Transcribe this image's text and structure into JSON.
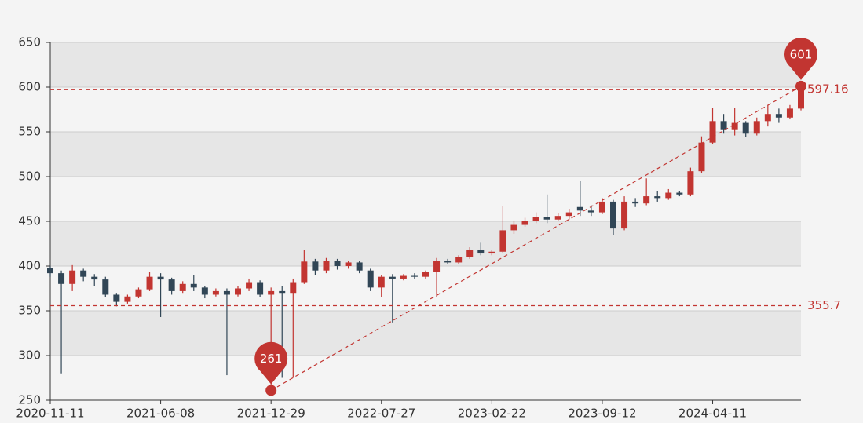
{
  "chart_data": {
    "type": "candlestick",
    "categories": [
      "2020-11-11",
      null,
      null,
      null,
      null,
      null,
      null,
      null,
      null,
      null,
      "2021-06-08",
      null,
      null,
      null,
      null,
      null,
      null,
      null,
      null,
      null,
      "2021-12-29",
      null,
      null,
      null,
      null,
      null,
      null,
      null,
      null,
      null,
      "2022-07-27",
      null,
      null,
      null,
      null,
      null,
      null,
      null,
      null,
      null,
      "2023-02-22",
      null,
      null,
      null,
      null,
      null,
      null,
      null,
      null,
      null,
      "2023-09-12",
      null,
      null,
      null,
      null,
      null,
      null,
      null,
      null,
      null,
      "2024-04-11",
      null,
      null,
      null,
      null,
      null,
      null,
      null,
      null
    ],
    "ohlc_order": [
      "open",
      "close",
      "low",
      "high"
    ],
    "values": [
      [
        398,
        392,
        388,
        400
      ],
      [
        392,
        380,
        280,
        395
      ],
      [
        380,
        395,
        372,
        401
      ],
      [
        395,
        388,
        383,
        397
      ],
      [
        388,
        385,
        378,
        391
      ],
      [
        385,
        368,
        365,
        388
      ],
      [
        368,
        360,
        355,
        370
      ],
      [
        360,
        366,
        358,
        368
      ],
      [
        366,
        374,
        364,
        376
      ],
      [
        374,
        388,
        372,
        393
      ],
      [
        388,
        385,
        343,
        392
      ],
      [
        385,
        372,
        368,
        387
      ],
      [
        372,
        380,
        370,
        383
      ],
      [
        380,
        376,
        372,
        390
      ],
      [
        376,
        368,
        364,
        378
      ],
      [
        368,
        372,
        366,
        375
      ],
      [
        372,
        368,
        278,
        375
      ],
      [
        368,
        375,
        366,
        378
      ],
      [
        375,
        382,
        372,
        386
      ],
      [
        382,
        368,
        365,
        384
      ],
      [
        368,
        372,
        261,
        376
      ],
      [
        372,
        370,
        275,
        378
      ],
      [
        370,
        382,
        275,
        386
      ],
      [
        382,
        405,
        380,
        418
      ],
      [
        405,
        395,
        390,
        408
      ],
      [
        395,
        406,
        392,
        409
      ],
      [
        406,
        400,
        396,
        408
      ],
      [
        400,
        404,
        397,
        406
      ],
      [
        404,
        395,
        392,
        406
      ],
      [
        395,
        376,
        372,
        397
      ],
      [
        376,
        388,
        365,
        390
      ],
      [
        388,
        386,
        337,
        391
      ],
      [
        386,
        389,
        384,
        391
      ],
      [
        389,
        388,
        386,
        392
      ],
      [
        388,
        393,
        386,
        395
      ],
      [
        393,
        406,
        365,
        409
      ],
      [
        406,
        404,
        402,
        408
      ],
      [
        404,
        410,
        402,
        412
      ],
      [
        410,
        418,
        408,
        421
      ],
      [
        418,
        414,
        412,
        426
      ],
      [
        414,
        416,
        412,
        418
      ],
      [
        416,
        440,
        414,
        467
      ],
      [
        440,
        446,
        436,
        450
      ],
      [
        446,
        450,
        444,
        454
      ],
      [
        450,
        455,
        448,
        460
      ],
      [
        455,
        452,
        448,
        480
      ],
      [
        452,
        456,
        450,
        459
      ],
      [
        456,
        460,
        452,
        464
      ],
      [
        466,
        462,
        456,
        495
      ],
      [
        462,
        460,
        456,
        468
      ],
      [
        460,
        472,
        458,
        476
      ],
      [
        472,
        442,
        435,
        474
      ],
      [
        442,
        472,
        440,
        478
      ],
      [
        472,
        470,
        466,
        476
      ],
      [
        470,
        478,
        468,
        498
      ],
      [
        478,
        476,
        472,
        484
      ],
      [
        476,
        482,
        474,
        486
      ],
      [
        482,
        480,
        478,
        484
      ],
      [
        480,
        506,
        478,
        510
      ],
      [
        506,
        538,
        504,
        545
      ],
      [
        538,
        562,
        536,
        577
      ],
      [
        562,
        552,
        548,
        570
      ],
      [
        552,
        560,
        546,
        577
      ],
      [
        560,
        548,
        544,
        562
      ],
      [
        548,
        562,
        546,
        566
      ],
      [
        562,
        570,
        556,
        580
      ],
      [
        570,
        566,
        560,
        576
      ],
      [
        566,
        576,
        564,
        580
      ],
      [
        576,
        597,
        574,
        601
      ]
    ],
    "up_color": "#c23531",
    "down_color": "#314656",
    "mark_color": "#c23531",
    "mark_points": [
      261,
      601
    ],
    "mark_lines": [
      597.16,
      355.7
    ],
    "ylim": [
      250,
      650
    ],
    "yticks": [
      250,
      300,
      350,
      400,
      450,
      500,
      550,
      600,
      650
    ],
    "split_area": [
      "#f4f4f4",
      "#e6e6e6"
    ]
  }
}
